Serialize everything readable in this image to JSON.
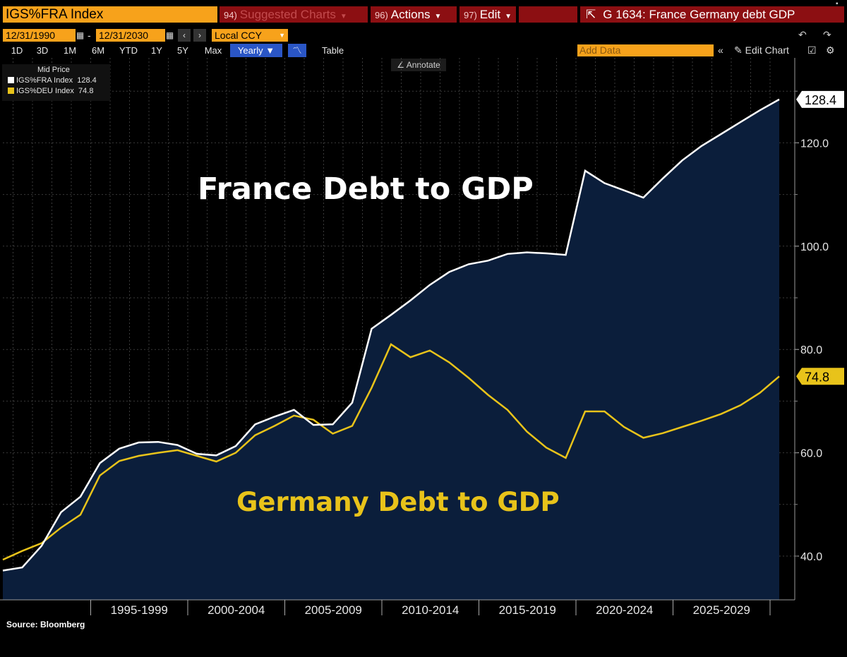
{
  "header": {
    "ticker": "IGS%FRA Index",
    "menu": [
      {
        "num": "94)",
        "label": "Suggested Charts"
      },
      {
        "num": "96)",
        "label": "Actions"
      },
      {
        "num": "97)",
        "label": "Edit"
      }
    ],
    "title": "G 1634: France Germany debt GDP"
  },
  "range": {
    "start": "12/31/1990",
    "sep": "-",
    "end": "12/31/2030",
    "currency": "Local CCY"
  },
  "periods": [
    "1D",
    "3D",
    "1M",
    "6M",
    "YTD",
    "1Y",
    "5Y",
    "Max"
  ],
  "frequency": "Yearly ▼",
  "table_label": "Table",
  "add_data_placeholder": "Add Data",
  "edit_chart": "Edit Chart",
  "annotate": "Annotate",
  "legend": {
    "header": "Mid Price",
    "items": [
      {
        "label": "IGS%FRA Index",
        "value": "128.4",
        "color": "#ffffff"
      },
      {
        "label": "IGS%DEU Index",
        "value": "74.8",
        "color": "#e8c31a"
      }
    ]
  },
  "source": "Source: Bloomberg",
  "chart_data": {
    "type": "area",
    "x": [
      1990,
      1991,
      1992,
      1993,
      1994,
      1995,
      1996,
      1997,
      1998,
      1999,
      2000,
      2001,
      2002,
      2003,
      2004,
      2005,
      2006,
      2007,
      2008,
      2009,
      2010,
      2011,
      2012,
      2013,
      2014,
      2015,
      2016,
      2017,
      2018,
      2019,
      2020,
      2021,
      2022,
      2023,
      2024,
      2025,
      2026,
      2027,
      2028,
      2029,
      2030
    ],
    "series": [
      {
        "name": "IGS%FRA Index",
        "color": "#ffffff",
        "values": [
          37.2,
          37.8,
          42.0,
          48.5,
          51.5,
          58.0,
          60.8,
          62.0,
          62.1,
          61.5,
          59.8,
          59.5,
          61.3,
          65.5,
          67.0,
          68.3,
          65.4,
          65.5,
          69.7,
          84.0,
          86.7,
          89.5,
          92.5,
          95.0,
          96.5,
          97.2,
          98.5,
          98.8,
          98.6,
          98.3,
          114.6,
          112.2,
          110.8,
          109.4,
          113.1,
          116.6,
          119.4,
          121.7,
          124.0,
          126.3,
          128.4
        ]
      },
      {
        "name": "IGS%DEU Index",
        "color": "#e8c31a",
        "values": [
          39.3,
          41.0,
          42.5,
          45.5,
          48.0,
          55.6,
          58.4,
          59.4,
          60.0,
          60.5,
          59.4,
          58.3,
          60.0,
          63.4,
          65.2,
          67.2,
          66.4,
          63.7,
          65.2,
          72.6,
          81.0,
          78.5,
          79.8,
          77.5,
          74.5,
          71.2,
          68.3,
          64.1,
          61.0,
          59.0,
          68.0,
          68.0,
          65.0,
          62.9,
          63.8,
          65.0,
          66.2,
          67.5,
          69.2,
          71.6,
          74.8
        ]
      }
    ],
    "annotations": {
      "france": "France Debt to GDP",
      "germany": "Germany Debt to GDP"
    },
    "last_values": [
      "128.4",
      "74.8"
    ],
    "y_ticks": [
      "40.0",
      "60.0",
      "80.0",
      "100.0",
      "120.0"
    ],
    "x_ticks": [
      "1995-1999",
      "2000-2004",
      "2005-2009",
      "2010-2014",
      "2015-2019",
      "2020-2024",
      "2025-2029"
    ],
    "ylim": [
      30,
      140
    ],
    "grid": true
  }
}
